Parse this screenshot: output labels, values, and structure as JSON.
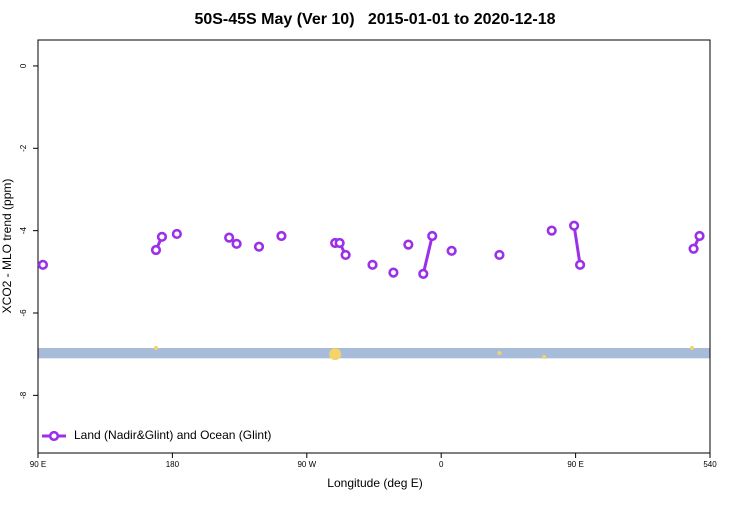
{
  "chart_data": {
    "type": "line",
    "title": "50S-45S May (Ver 10)   2015-01-01 to 2020-12-18",
    "xlabel": "Longitude (deg E)",
    "ylabel": "XCO2 - MLO trend (ppm)",
    "xlim": [
      90,
      540
    ],
    "xticks": [
      {
        "value": 90,
        "label": "90 E"
      },
      180,
      {
        "value": 270,
        "label": "90 W"
      },
      {
        "value": 360,
        "label": "0"
      },
      {
        "value": 450,
        "label": "90 E"
      },
      540
    ],
    "ylim": [
      -9.4,
      0.63
    ],
    "yticks": [
      0,
      -2,
      -4,
      -6,
      -8
    ],
    "legend": "bottom-left",
    "series": [
      {
        "name": "Land (Nadir&Glint) and Ocean (Glint)",
        "color": "#9b30e8",
        "x": [
          93.3,
          null,
          169,
          173,
          null,
          183,
          null,
          218,
          null,
          223,
          null,
          238,
          null,
          253,
          null,
          289,
          292,
          296,
          null,
          314,
          null,
          328,
          null,
          338,
          null,
          348,
          354,
          null,
          367,
          null,
          399,
          null,
          434,
          null,
          449,
          453,
          null,
          529,
          533
        ],
        "values": [
          -4.83,
          null,
          -4.47,
          -4.15,
          null,
          -4.08,
          null,
          -4.17,
          null,
          -4.32,
          null,
          -4.39,
          null,
          -4.13,
          null,
          -4.3,
          -4.3,
          -4.59,
          null,
          -4.83,
          null,
          -5.02,
          null,
          -4.34,
          null,
          -5.05,
          -4.13,
          null,
          -4.49,
          null,
          -4.59,
          null,
          -4.0,
          null,
          -3.88,
          -4.83,
          null,
          -4.44,
          -4.13
        ]
      }
    ],
    "band": {
      "color": "#a7bcd9",
      "values": [
        -6.85,
        -7.1
      ]
    },
    "markers": {
      "color": "#f5d26a",
      "x": [
        169,
        289,
        399,
        429,
        528
      ],
      "values": [
        -6.85,
        -7.0,
        -6.97,
        -7.07,
        -6.85
      ]
    }
  }
}
